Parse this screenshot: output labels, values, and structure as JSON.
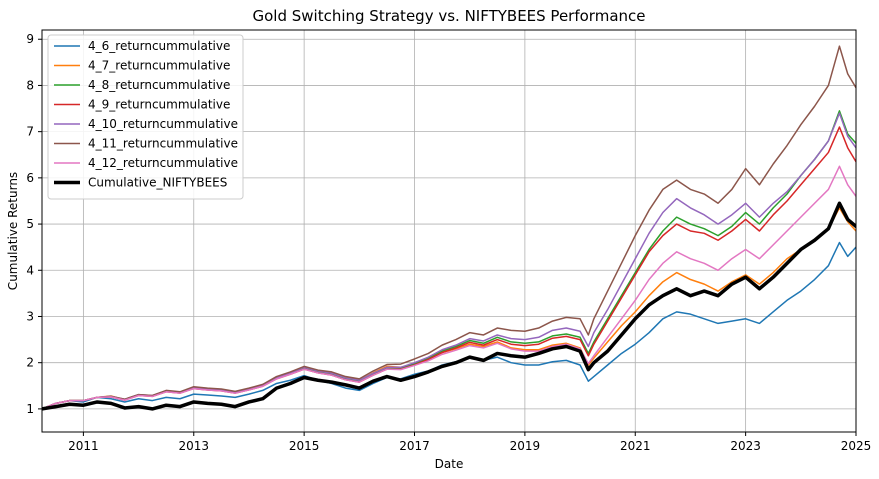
{
  "chart_data": {
    "type": "line",
    "title": "Gold Switching Strategy vs. NIFTYBEES Performance",
    "xlabel": "Date",
    "ylabel": "Cumulative Returns",
    "xlim": [
      2010.25,
      2025.0
    ],
    "ylim": [
      0.5,
      9.2
    ],
    "x_ticks": [
      2011,
      2013,
      2015,
      2017,
      2019,
      2021,
      2023,
      2025
    ],
    "y_ticks": [
      1,
      2,
      3,
      4,
      5,
      6,
      7,
      8,
      9
    ],
    "grid": true,
    "legend_position": "upper-left",
    "x": [
      2010.25,
      2010.5,
      2010.75,
      2011.0,
      2011.25,
      2011.5,
      2011.75,
      2012.0,
      2012.25,
      2012.5,
      2012.75,
      2013.0,
      2013.25,
      2013.5,
      2013.75,
      2014.0,
      2014.25,
      2014.5,
      2014.75,
      2015.0,
      2015.25,
      2015.5,
      2015.75,
      2016.0,
      2016.25,
      2016.5,
      2016.75,
      2017.0,
      2017.25,
      2017.5,
      2017.75,
      2018.0,
      2018.25,
      2018.5,
      2018.75,
      2019.0,
      2019.25,
      2019.5,
      2019.75,
      2020.0,
      2020.15,
      2020.25,
      2020.5,
      2020.75,
      2021.0,
      2021.25,
      2021.5,
      2021.75,
      2022.0,
      2022.25,
      2022.5,
      2022.75,
      2023.0,
      2023.25,
      2023.5,
      2023.75,
      2024.0,
      2024.25,
      2024.5,
      2024.7,
      2024.85,
      2025.0
    ],
    "series": [
      {
        "name": "4_6_returncummulative",
        "color": "#1f77b4",
        "width": 1.5,
        "values": [
          1.0,
          1.12,
          1.18,
          1.15,
          1.25,
          1.22,
          1.15,
          1.22,
          1.18,
          1.25,
          1.22,
          1.32,
          1.3,
          1.28,
          1.25,
          1.32,
          1.4,
          1.55,
          1.62,
          1.72,
          1.62,
          1.55,
          1.45,
          1.4,
          1.55,
          1.68,
          1.65,
          1.75,
          1.82,
          1.95,
          2.02,
          2.1,
          2.05,
          2.12,
          2.0,
          1.95,
          1.95,
          2.02,
          2.05,
          1.95,
          1.6,
          1.7,
          1.95,
          2.2,
          2.4,
          2.65,
          2.95,
          3.1,
          3.05,
          2.95,
          2.85,
          2.9,
          2.95,
          2.85,
          3.1,
          3.35,
          3.55,
          3.8,
          4.1,
          4.6,
          4.3,
          4.5
        ]
      },
      {
        "name": "4_7_returncummulative",
        "color": "#ff7f0e",
        "width": 1.5,
        "values": [
          1.0,
          1.12,
          1.18,
          1.18,
          1.25,
          1.28,
          1.2,
          1.3,
          1.28,
          1.38,
          1.35,
          1.45,
          1.42,
          1.4,
          1.35,
          1.42,
          1.5,
          1.68,
          1.78,
          1.9,
          1.82,
          1.78,
          1.68,
          1.62,
          1.78,
          1.92,
          1.9,
          1.98,
          2.08,
          2.22,
          2.3,
          2.4,
          2.35,
          2.45,
          2.32,
          2.28,
          2.28,
          2.38,
          2.42,
          2.32,
          1.95,
          2.1,
          2.45,
          2.8,
          3.1,
          3.45,
          3.75,
          3.95,
          3.8,
          3.7,
          3.55,
          3.75,
          3.9,
          3.7,
          3.95,
          4.25,
          4.45,
          4.65,
          4.9,
          5.35,
          5.05,
          4.85
        ]
      },
      {
        "name": "4_8_returncummulative",
        "color": "#2ca02c",
        "width": 1.5,
        "values": [
          1.0,
          1.12,
          1.18,
          1.18,
          1.25,
          1.27,
          1.2,
          1.3,
          1.28,
          1.38,
          1.35,
          1.45,
          1.42,
          1.4,
          1.35,
          1.42,
          1.5,
          1.66,
          1.76,
          1.88,
          1.8,
          1.75,
          1.65,
          1.6,
          1.75,
          1.88,
          1.88,
          1.98,
          2.1,
          2.25,
          2.35,
          2.48,
          2.42,
          2.55,
          2.45,
          2.42,
          2.45,
          2.58,
          2.62,
          2.55,
          2.2,
          2.45,
          2.95,
          3.45,
          3.95,
          4.45,
          4.85,
          5.15,
          5.0,
          4.9,
          4.75,
          4.95,
          5.25,
          5.0,
          5.35,
          5.65,
          6.05,
          6.4,
          6.8,
          7.45,
          6.95,
          6.75
        ]
      },
      {
        "name": "4_9_returncummulative",
        "color": "#d62728",
        "width": 1.5,
        "values": [
          1.0,
          1.12,
          1.18,
          1.18,
          1.25,
          1.26,
          1.19,
          1.29,
          1.27,
          1.37,
          1.34,
          1.44,
          1.41,
          1.39,
          1.34,
          1.41,
          1.49,
          1.65,
          1.75,
          1.86,
          1.78,
          1.73,
          1.63,
          1.58,
          1.73,
          1.86,
          1.86,
          1.95,
          2.07,
          2.22,
          2.32,
          2.44,
          2.38,
          2.5,
          2.4,
          2.37,
          2.4,
          2.53,
          2.57,
          2.5,
          2.15,
          2.4,
          2.9,
          3.4,
          3.9,
          4.4,
          4.75,
          5.0,
          4.85,
          4.8,
          4.65,
          4.85,
          5.1,
          4.85,
          5.2,
          5.5,
          5.85,
          6.2,
          6.55,
          7.1,
          6.65,
          6.35
        ]
      },
      {
        "name": "4_10_returncummulative",
        "color": "#9467bd",
        "width": 1.5,
        "values": [
          1.0,
          1.12,
          1.18,
          1.18,
          1.25,
          1.27,
          1.21,
          1.31,
          1.29,
          1.39,
          1.36,
          1.46,
          1.43,
          1.41,
          1.36,
          1.43,
          1.51,
          1.68,
          1.78,
          1.9,
          1.82,
          1.77,
          1.67,
          1.62,
          1.77,
          1.9,
          1.9,
          2.0,
          2.12,
          2.28,
          2.38,
          2.52,
          2.47,
          2.6,
          2.52,
          2.5,
          2.55,
          2.7,
          2.75,
          2.68,
          2.35,
          2.65,
          3.15,
          3.7,
          4.25,
          4.8,
          5.25,
          5.55,
          5.35,
          5.2,
          5.0,
          5.2,
          5.45,
          5.15,
          5.45,
          5.7,
          6.05,
          6.4,
          6.8,
          7.4,
          6.9,
          6.65
        ]
      },
      {
        "name": "4_11_returncummulative",
        "color": "#8c564b",
        "width": 1.5,
        "values": [
          1.0,
          1.12,
          1.18,
          1.18,
          1.25,
          1.27,
          1.21,
          1.31,
          1.29,
          1.4,
          1.37,
          1.48,
          1.45,
          1.43,
          1.38,
          1.45,
          1.53,
          1.7,
          1.8,
          1.92,
          1.84,
          1.8,
          1.7,
          1.65,
          1.82,
          1.96,
          1.97,
          2.08,
          2.2,
          2.38,
          2.5,
          2.65,
          2.6,
          2.75,
          2.7,
          2.68,
          2.75,
          2.9,
          2.98,
          2.95,
          2.6,
          2.95,
          3.55,
          4.15,
          4.75,
          5.3,
          5.75,
          5.95,
          5.75,
          5.65,
          5.45,
          5.75,
          6.2,
          5.85,
          6.3,
          6.7,
          7.15,
          7.55,
          8.0,
          8.85,
          8.25,
          7.95
        ]
      },
      {
        "name": "4_12_returncummulative",
        "color": "#e377c2",
        "width": 1.5,
        "values": [
          1.0,
          1.12,
          1.18,
          1.18,
          1.25,
          1.26,
          1.19,
          1.29,
          1.27,
          1.37,
          1.34,
          1.44,
          1.41,
          1.39,
          1.34,
          1.41,
          1.49,
          1.65,
          1.75,
          1.86,
          1.78,
          1.73,
          1.63,
          1.58,
          1.73,
          1.86,
          1.85,
          1.94,
          2.04,
          2.18,
          2.27,
          2.37,
          2.32,
          2.42,
          2.3,
          2.25,
          2.25,
          2.35,
          2.4,
          2.3,
          1.98,
          2.15,
          2.55,
          2.95,
          3.35,
          3.8,
          4.15,
          4.4,
          4.25,
          4.15,
          4.0,
          4.25,
          4.45,
          4.25,
          4.55,
          4.85,
          5.15,
          5.45,
          5.75,
          6.25,
          5.85,
          5.6
        ]
      },
      {
        "name": "Cumulative_NIFTYBEES",
        "color": "#000000",
        "width": 3.5,
        "values": [
          1.0,
          1.05,
          1.1,
          1.08,
          1.15,
          1.12,
          1.02,
          1.05,
          1.0,
          1.08,
          1.05,
          1.15,
          1.12,
          1.1,
          1.05,
          1.15,
          1.22,
          1.45,
          1.55,
          1.68,
          1.62,
          1.58,
          1.52,
          1.45,
          1.6,
          1.7,
          1.62,
          1.7,
          1.8,
          1.92,
          2.0,
          2.12,
          2.05,
          2.2,
          2.15,
          2.12,
          2.2,
          2.3,
          2.35,
          2.25,
          1.85,
          2.0,
          2.25,
          2.6,
          2.95,
          3.25,
          3.45,
          3.6,
          3.45,
          3.55,
          3.45,
          3.7,
          3.85,
          3.6,
          3.85,
          4.15,
          4.45,
          4.65,
          4.9,
          5.45,
          5.1,
          4.95
        ]
      }
    ]
  }
}
